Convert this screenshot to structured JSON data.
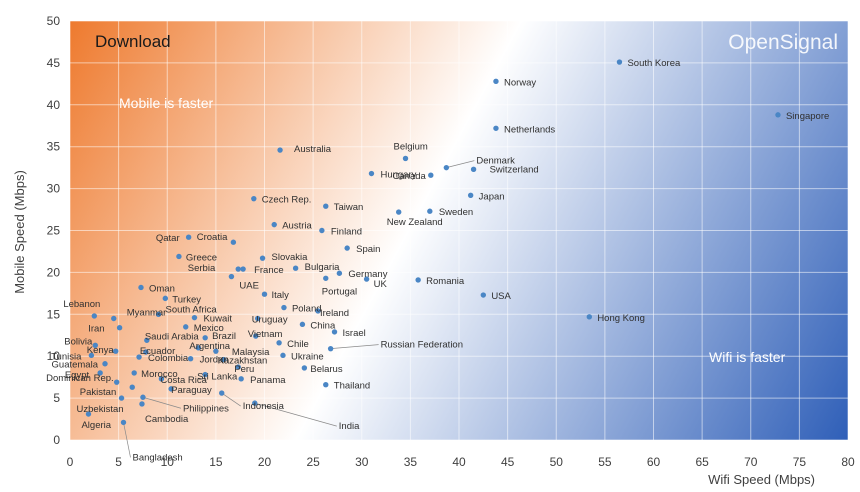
{
  "chart_data": {
    "type": "scatter",
    "title": "Download",
    "watermark": "OpenSignal",
    "xlabel": "Wifi Speed (Mbps)",
    "ylabel": "Mobile Speed (Mbps)",
    "xlim": [
      0,
      80
    ],
    "ylim": [
      0,
      50
    ],
    "xticks": [
      0,
      5,
      10,
      15,
      20,
      25,
      30,
      35,
      40,
      45,
      50,
      55,
      60,
      65,
      70,
      75,
      80
    ],
    "yticks": [
      0,
      5,
      10,
      15,
      20,
      25,
      30,
      35,
      40,
      45,
      50
    ],
    "grid": true,
    "annotations": [
      "Mobile is faster",
      "Wifi is faster"
    ],
    "colors": {
      "point": "#4a86c5",
      "mobile_region": "#ee7a2e",
      "wifi_region": "#2f5fb8"
    },
    "points": [
      {
        "name": "South Korea",
        "x": 56.5,
        "y": 45.1
      },
      {
        "name": "Norway",
        "x": 43.8,
        "y": 42.8
      },
      {
        "name": "Singapore",
        "x": 72.8,
        "y": 38.8
      },
      {
        "name": "Netherlands",
        "x": 43.8,
        "y": 37.2
      },
      {
        "name": "Australia",
        "x": 21.6,
        "y": 34.6
      },
      {
        "name": "Belgium",
        "x": 34.5,
        "y": 33.6
      },
      {
        "name": "Denmark",
        "x": 38.7,
        "y": 32.5
      },
      {
        "name": "Switzerland",
        "x": 41.5,
        "y": 32.3
      },
      {
        "name": "Hungary",
        "x": 31.0,
        "y": 31.8
      },
      {
        "name": "Canada",
        "x": 37.1,
        "y": 31.6
      },
      {
        "name": "Japan",
        "x": 41.2,
        "y": 29.2
      },
      {
        "name": "Czech Rep.",
        "x": 18.9,
        "y": 28.8
      },
      {
        "name": "Taiwan",
        "x": 26.3,
        "y": 27.9
      },
      {
        "name": "New Zealand",
        "x": 33.8,
        "y": 27.2
      },
      {
        "name": "Sweden",
        "x": 37.0,
        "y": 27.3
      },
      {
        "name": "Austria",
        "x": 21.0,
        "y": 25.7
      },
      {
        "name": "Finland",
        "x": 25.9,
        "y": 25.0
      },
      {
        "name": "Qatar",
        "x": 12.2,
        "y": 24.2
      },
      {
        "name": "Croatia",
        "x": 16.8,
        "y": 23.6
      },
      {
        "name": "Spain",
        "x": 28.5,
        "y": 22.9
      },
      {
        "name": "Greece",
        "x": 11.2,
        "y": 21.9
      },
      {
        "name": "Slovakia",
        "x": 19.8,
        "y": 21.7
      },
      {
        "name": "Serbia",
        "x": 17.3,
        "y": 20.4
      },
      {
        "name": "France",
        "x": 17.8,
        "y": 20.4
      },
      {
        "name": "Bulgaria",
        "x": 23.2,
        "y": 20.5
      },
      {
        "name": "Germany",
        "x": 27.7,
        "y": 19.9
      },
      {
        "name": "UAE",
        "x": 16.6,
        "y": 19.5
      },
      {
        "name": "UK",
        "x": 30.5,
        "y": 19.2
      },
      {
        "name": "Romania",
        "x": 35.8,
        "y": 19.1
      },
      {
        "name": "Portugal",
        "x": 26.3,
        "y": 19.3
      },
      {
        "name": "Oman",
        "x": 7.3,
        "y": 18.2
      },
      {
        "name": "Italy",
        "x": 20.0,
        "y": 17.4
      },
      {
        "name": "USA",
        "x": 42.5,
        "y": 17.3
      },
      {
        "name": "Turkey",
        "x": 9.8,
        "y": 16.9
      },
      {
        "name": "Poland",
        "x": 22.0,
        "y": 15.8
      },
      {
        "name": "Ireland",
        "x": 25.5,
        "y": 15.4
      },
      {
        "name": "South Africa",
        "x": 9.1,
        "y": 15.0
      },
      {
        "name": "Lebanon",
        "x": 2.5,
        "y": 14.8
      },
      {
        "name": "Myanmar",
        "x": 4.5,
        "y": 14.5
      },
      {
        "name": "Kuwait",
        "x": 12.8,
        "y": 14.6
      },
      {
        "name": "Uruguay",
        "x": 19.3,
        "y": 14.5
      },
      {
        "name": "Hong Kong",
        "x": 53.4,
        "y": 14.7
      },
      {
        "name": "China",
        "x": 23.9,
        "y": 13.8
      },
      {
        "name": "Mexico",
        "x": 11.9,
        "y": 13.5
      },
      {
        "name": "Iran",
        "x": 5.1,
        "y": 13.4
      },
      {
        "name": "Israel",
        "x": 27.2,
        "y": 12.9
      },
      {
        "name": "Vietnam",
        "x": 19.1,
        "y": 12.4
      },
      {
        "name": "Brazil",
        "x": 13.9,
        "y": 12.2
      },
      {
        "name": "Saudi Arabia",
        "x": 7.9,
        "y": 11.9
      },
      {
        "name": "Chile",
        "x": 21.5,
        "y": 11.6
      },
      {
        "name": "Bolivia",
        "x": 2.6,
        "y": 11.3
      },
      {
        "name": "Argentina",
        "x": 13.2,
        "y": 11.0
      },
      {
        "name": "Russian Federation",
        "x": 26.8,
        "y": 10.9
      },
      {
        "name": "Kenya",
        "x": 4.7,
        "y": 10.6
      },
      {
        "name": "Malaysia",
        "x": 15.0,
        "y": 10.6
      },
      {
        "name": "Ecuador",
        "x": 7.8,
        "y": 10.5
      },
      {
        "name": "Tunisia",
        "x": 2.2,
        "y": 10.1
      },
      {
        "name": "Colombia",
        "x": 7.1,
        "y": 9.9
      },
      {
        "name": "Jordan",
        "x": 12.4,
        "y": 9.7
      },
      {
        "name": "Kazakhstan",
        "x": 15.8,
        "y": 9.6
      },
      {
        "name": "Ukraine",
        "x": 21.9,
        "y": 10.1
      },
      {
        "name": "Guatemala",
        "x": 3.6,
        "y": 9.1
      },
      {
        "name": "Peru",
        "x": 17.3,
        "y": 8.7
      },
      {
        "name": "Belarus",
        "x": 24.1,
        "y": 8.6
      },
      {
        "name": "Egypt",
        "x": 3.1,
        "y": 8.0
      },
      {
        "name": "Morocco",
        "x": 6.6,
        "y": 8.0
      },
      {
        "name": "Sri Lanka",
        "x": 13.9,
        "y": 7.8
      },
      {
        "name": "Costa Rica",
        "x": 9.4,
        "y": 7.3
      },
      {
        "name": "Dominican Rep.",
        "x": 4.8,
        "y": 6.9
      },
      {
        "name": "Panama",
        "x": 17.6,
        "y": 7.3
      },
      {
        "name": "Thailand",
        "x": 26.3,
        "y": 6.6
      },
      {
        "name": "Pakistan",
        "x": 6.4,
        "y": 6.3
      },
      {
        "name": "Paraguay",
        "x": 10.4,
        "y": 6.1
      },
      {
        "name": "Indonesia",
        "x": 15.6,
        "y": 5.6
      },
      {
        "name": "Uzbekistan",
        "x": 5.3,
        "y": 5.0
      },
      {
        "name": "Philippines",
        "x": 7.5,
        "y": 5.1
      },
      {
        "name": "India",
        "x": 19.0,
        "y": 4.4
      },
      {
        "name": "Cambodia",
        "x": 7.4,
        "y": 4.3
      },
      {
        "name": "Algeria",
        "x": 1.9,
        "y": 3.1
      },
      {
        "name": "Bangladesh",
        "x": 5.5,
        "y": 2.1
      }
    ]
  }
}
